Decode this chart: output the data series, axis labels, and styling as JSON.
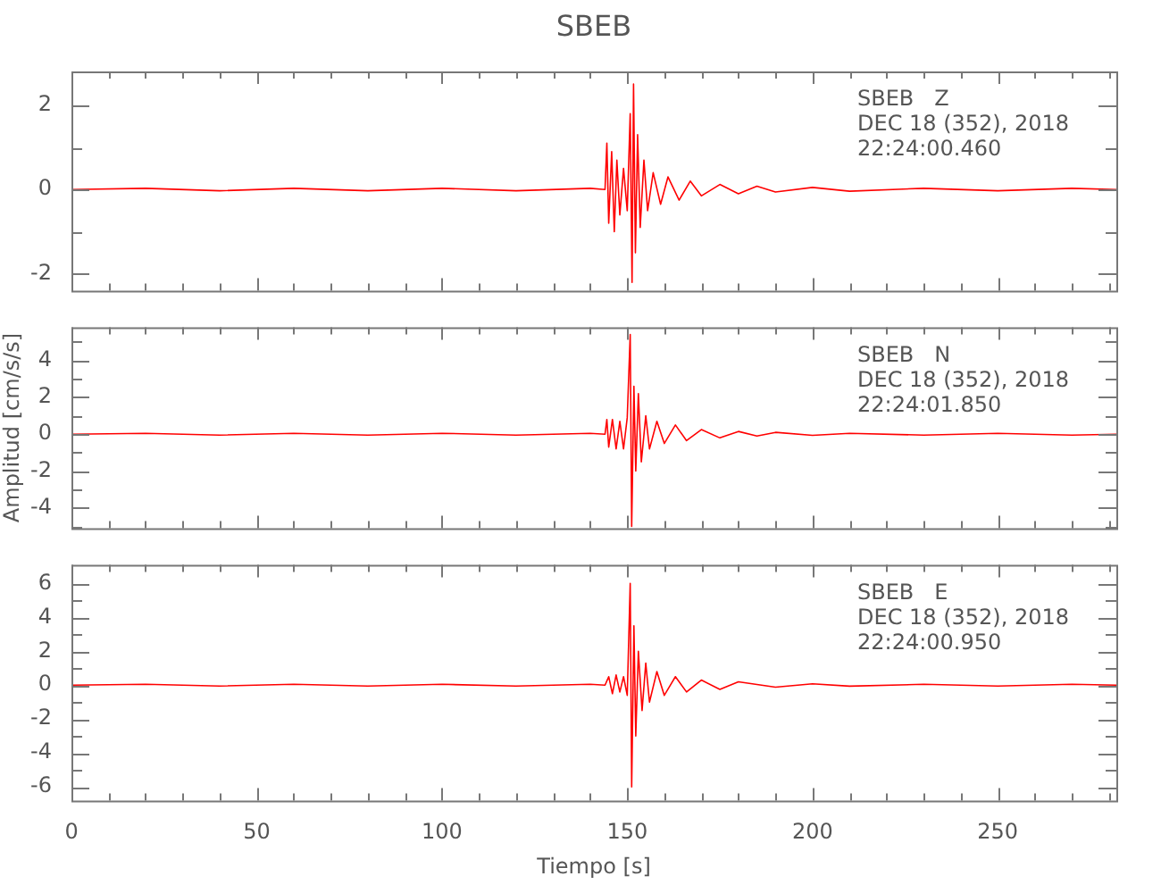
{
  "chart_data": [
    {
      "type": "line",
      "title": "SBEB",
      "x": [
        0,
        20,
        40,
        60,
        80,
        100,
        120,
        140,
        144,
        144.5,
        145,
        145.8,
        146.5,
        147.2,
        148,
        149,
        150,
        150.8,
        151.3,
        151.7,
        152.2,
        152.8,
        153.5,
        154.5,
        155.5,
        157,
        159,
        161,
        164,
        167,
        170,
        175,
        180,
        185,
        190,
        200,
        210,
        230,
        250,
        270,
        282
      ],
      "series": [
        {
          "color": "#ff0000",
          "values": [
            0,
            0.03,
            -0.03,
            0.03,
            -0.03,
            0.03,
            -0.03,
            0.03,
            0,
            1.1,
            -0.8,
            0.9,
            -1.0,
            0.7,
            -0.6,
            0.5,
            -0.5,
            1.8,
            -2.2,
            2.5,
            -1.5,
            1.3,
            -0.9,
            0.7,
            -0.5,
            0.4,
            -0.35,
            0.3,
            -0.25,
            0.2,
            -0.15,
            0.12,
            -0.1,
            0.08,
            -0.06,
            0.05,
            -0.04,
            0.03,
            -0.03,
            0.03,
            0
          ]
        }
      ],
      "xlim": [
        0,
        282
      ],
      "xticks": [
        0,
        {
          "value": 10,
          "label": null
        },
        {
          "value": 20,
          "label": null
        },
        {
          "value": 30,
          "label": null
        },
        {
          "value": 40,
          "label": null
        },
        50,
        {
          "value": 60,
          "label": null
        },
        {
          "value": 70,
          "label": null
        },
        {
          "value": 80,
          "label": null
        },
        {
          "value": 90,
          "label": null
        },
        100,
        {
          "value": 110,
          "label": null
        },
        {
          "value": 120,
          "label": null
        },
        {
          "value": 130,
          "label": null
        },
        {
          "value": 140,
          "label": null
        },
        150,
        {
          "value": 160,
          "label": null
        },
        {
          "value": 170,
          "label": null
        },
        {
          "value": 180,
          "label": null
        },
        {
          "value": 190,
          "label": null
        },
        200,
        {
          "value": 210,
          "label": null
        },
        {
          "value": 220,
          "label": null
        },
        {
          "value": 230,
          "label": null
        },
        {
          "value": 240,
          "label": null
        },
        250,
        {
          "value": 260,
          "label": null
        },
        {
          "value": 270,
          "label": null
        },
        {
          "value": 280,
          "label": null
        }
      ],
      "ylim": [
        -2.4,
        2.8
      ],
      "yticks": [
        -2,
        {
          "value": -1,
          "label": null
        },
        0,
        {
          "value": 1,
          "label": null
        },
        2
      ],
      "tick_labels": "y",
      "annotations": [
        "SBEB   Z",
        "DEC 18 (352), 2018",
        "22:24:00.460"
      ]
    },
    {
      "type": "line",
      "ylabel": "Amplitud [cm/s/s]",
      "x": [
        0,
        20,
        40,
        60,
        80,
        100,
        120,
        140,
        144,
        144.5,
        145,
        146,
        147,
        148,
        149,
        150,
        150.8,
        151.2,
        151.8,
        152.3,
        153,
        153.8,
        155,
        156,
        158,
        160,
        163,
        166,
        170,
        175,
        180,
        185,
        190,
        200,
        210,
        230,
        250,
        270,
        282
      ],
      "series": [
        {
          "color": "#ff0000",
          "values": [
            0,
            0.05,
            -0.05,
            0.05,
            -0.05,
            0.05,
            -0.05,
            0.05,
            0,
            0.8,
            -0.7,
            0.8,
            -0.8,
            0.7,
            -0.8,
            0.9,
            5.4,
            -5.0,
            2.6,
            -2.0,
            2.2,
            -1.5,
            1.0,
            -0.8,
            0.7,
            -0.5,
            0.5,
            -0.35,
            0.25,
            -0.2,
            0.15,
            -0.1,
            0.1,
            -0.06,
            0.05,
            -0.05,
            0.05,
            -0.05,
            0
          ]
        }
      ],
      "xlim": [
        0,
        282
      ],
      "xticks": [
        0,
        {
          "value": 10,
          "label": null
        },
        {
          "value": 20,
          "label": null
        },
        {
          "value": 30,
          "label": null
        },
        {
          "value": 40,
          "label": null
        },
        50,
        {
          "value": 60,
          "label": null
        },
        {
          "value": 70,
          "label": null
        },
        {
          "value": 80,
          "label": null
        },
        {
          "value": 90,
          "label": null
        },
        100,
        {
          "value": 110,
          "label": null
        },
        {
          "value": 120,
          "label": null
        },
        {
          "value": 130,
          "label": null
        },
        {
          "value": 140,
          "label": null
        },
        150,
        {
          "value": 160,
          "label": null
        },
        {
          "value": 170,
          "label": null
        },
        {
          "value": 180,
          "label": null
        },
        {
          "value": 190,
          "label": null
        },
        200,
        {
          "value": 210,
          "label": null
        },
        {
          "value": 220,
          "label": null
        },
        {
          "value": 230,
          "label": null
        },
        {
          "value": 240,
          "label": null
        },
        250,
        {
          "value": 260,
          "label": null
        },
        {
          "value": 270,
          "label": null
        },
        {
          "value": 280,
          "label": null
        }
      ],
      "ylim": [
        -5.1,
        5.8
      ],
      "yticks": [
        {
          "value": -5,
          "label": null
        },
        -4,
        {
          "value": -3,
          "label": null
        },
        -2,
        {
          "value": -1,
          "label": null
        },
        0,
        {
          "value": 1,
          "label": null
        },
        2,
        {
          "value": 3,
          "label": null
        },
        4,
        {
          "value": 5,
          "label": null
        }
      ],
      "tick_labels": "y",
      "annotations": [
        "SBEB   N",
        "DEC 18 (352), 2018",
        "22:24:01.850"
      ]
    },
    {
      "type": "line",
      "xlabel": "Tiempo [s]",
      "x": [
        0,
        20,
        40,
        60,
        80,
        100,
        120,
        140,
        144,
        145,
        146,
        147,
        148,
        149,
        150,
        150.8,
        151.2,
        151.8,
        152.3,
        153,
        154,
        155,
        156,
        158,
        160,
        163,
        166,
        170,
        175,
        180,
        190,
        200,
        210,
        230,
        250,
        270,
        282
      ],
      "series": [
        {
          "color": "#ff0000",
          "values": [
            0,
            0.05,
            -0.05,
            0.05,
            -0.05,
            0.05,
            -0.05,
            0.05,
            0,
            0.5,
            -0.5,
            0.6,
            -0.4,
            0.5,
            -0.6,
            6.0,
            -6.0,
            3.5,
            -3.0,
            2.0,
            -1.5,
            1.3,
            -1.0,
            0.8,
            -0.6,
            0.5,
            -0.4,
            0.3,
            -0.25,
            0.2,
            -0.12,
            0.08,
            -0.06,
            0.05,
            -0.05,
            0.05,
            0
          ]
        }
      ],
      "xlim": [
        0,
        282
      ],
      "xticks": [
        0,
        {
          "value": 10,
          "label": null
        },
        {
          "value": 20,
          "label": null
        },
        {
          "value": 30,
          "label": null
        },
        {
          "value": 40,
          "label": null
        },
        50,
        {
          "value": 60,
          "label": null
        },
        {
          "value": 70,
          "label": null
        },
        {
          "value": 80,
          "label": null
        },
        {
          "value": 90,
          "label": null
        },
        100,
        {
          "value": 110,
          "label": null
        },
        {
          "value": 120,
          "label": null
        },
        {
          "value": 130,
          "label": null
        },
        {
          "value": 140,
          "label": null
        },
        150,
        {
          "value": 160,
          "label": null
        },
        {
          "value": 170,
          "label": null
        },
        {
          "value": 180,
          "label": null
        },
        {
          "value": 190,
          "label": null
        },
        200,
        {
          "value": 210,
          "label": null
        },
        {
          "value": 220,
          "label": null
        },
        {
          "value": 230,
          "label": null
        },
        {
          "value": 240,
          "label": null
        },
        250,
        {
          "value": 260,
          "label": null
        },
        {
          "value": 270,
          "label": null
        },
        {
          "value": 280,
          "label": null
        }
      ],
      "ylim": [
        -6.8,
        7.1
      ],
      "yticks": [
        -6,
        {
          "value": -5,
          "label": null
        },
        -4,
        {
          "value": -3,
          "label": null
        },
        -2,
        {
          "value": -1,
          "label": null
        },
        0,
        {
          "value": 1,
          "label": null
        },
        2,
        {
          "value": 3,
          "label": null
        },
        4,
        {
          "value": 5,
          "label": null
        },
        6
      ],
      "annotations": [
        "SBEB   E",
        "DEC 18 (352), 2018",
        "22:24:00.950"
      ]
    }
  ]
}
